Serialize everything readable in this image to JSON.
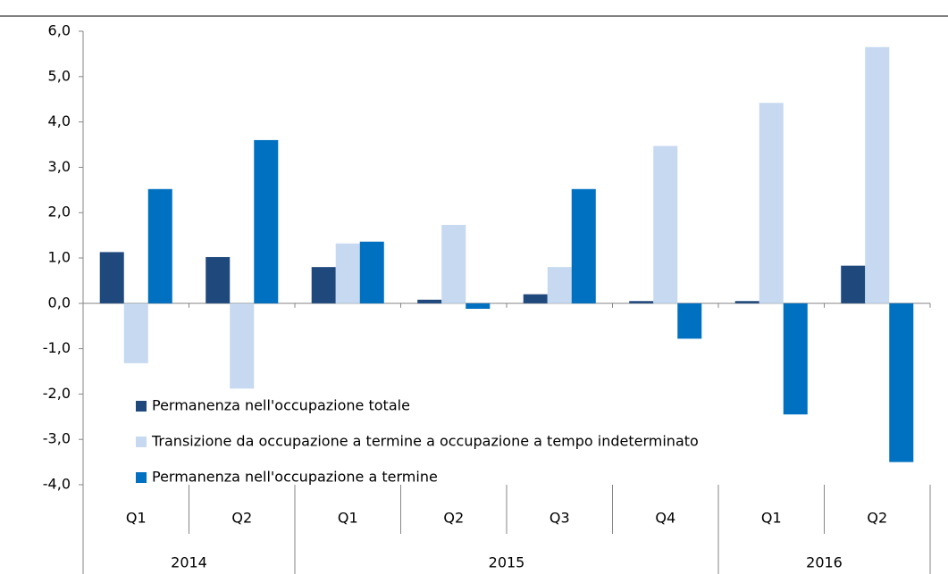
{
  "chart_data": {
    "type": "bar",
    "groups": [
      {
        "name": "2014",
        "categories": [
          "Q1",
          "Q2"
        ]
      },
      {
        "name": "2015",
        "categories": [
          "Q1",
          "Q2",
          "Q3",
          "Q4"
        ]
      },
      {
        "name": "2016",
        "categories": [
          "Q1",
          "Q2"
        ]
      }
    ],
    "series": [
      {
        "name": "Permanenza nell'occupazione totale",
        "color": "#1F497D",
        "values": [
          1.13,
          1.02,
          0.8,
          0.08,
          0.2,
          0.05,
          0.05,
          0.83
        ]
      },
      {
        "name": "Transizione da occupazione a termine a occupazione a tempo indeterminato",
        "color": "#C6D9F1",
        "values": [
          -1.32,
          -1.88,
          1.32,
          1.73,
          0.8,
          3.47,
          4.42,
          5.65
        ]
      },
      {
        "name": "Permanenza nell'occupazione a termine",
        "color": "#0070C0",
        "values": [
          2.52,
          3.6,
          1.36,
          -0.12,
          2.52,
          -0.78,
          -2.45,
          -3.5
        ]
      }
    ],
    "ylim": [
      -4,
      6
    ],
    "yticks": [
      {
        "value": -4,
        "label": "-4,0"
      },
      {
        "value": -3,
        "label": "-3,0"
      },
      {
        "value": -2,
        "label": "-2,0"
      },
      {
        "value": -1,
        "label": "-1,0"
      },
      {
        "value": 0,
        "label": "0,0"
      },
      {
        "value": 1,
        "label": "1,0"
      },
      {
        "value": 2,
        "label": "2,0"
      },
      {
        "value": 3,
        "label": "3,0"
      },
      {
        "value": 4,
        "label": "4,0"
      },
      {
        "value": 5,
        "label": "5,0"
      },
      {
        "value": 6,
        "label": "6,0"
      }
    ],
    "legend": "lower-left"
  }
}
